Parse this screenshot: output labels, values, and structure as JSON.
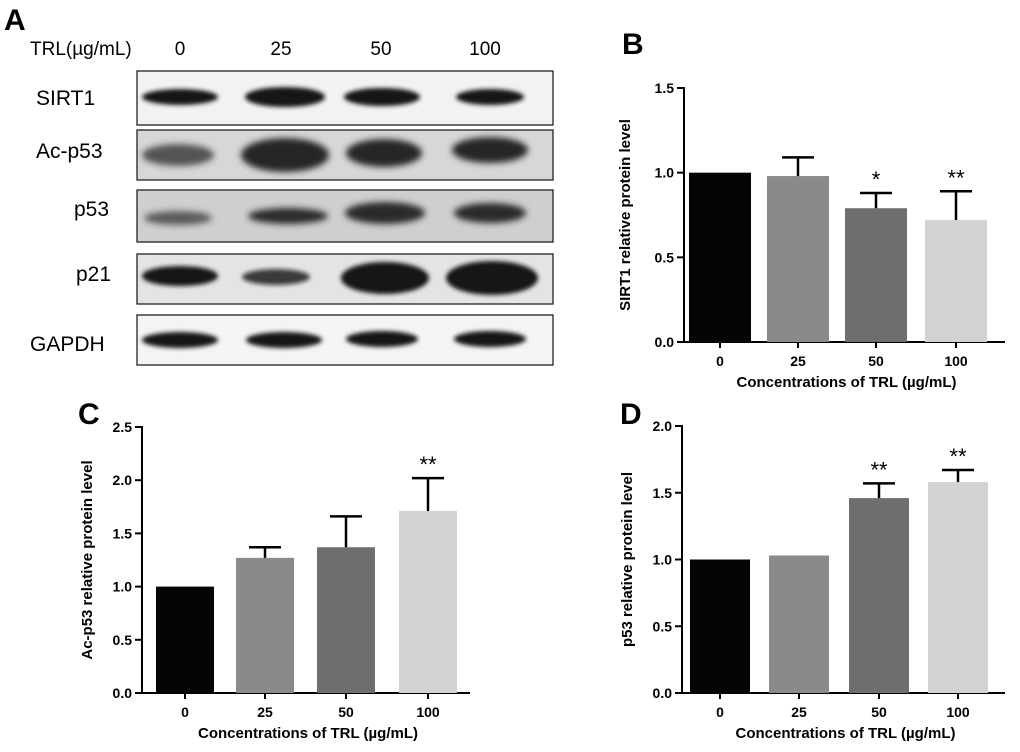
{
  "panel_letters": {
    "a": "A",
    "b": "B",
    "c": "C",
    "d": "D"
  },
  "western_blot": {
    "treatment_label": "TRL(µg/mL)",
    "lanes": [
      "0",
      "25",
      "50",
      "100"
    ],
    "proteins": [
      "SIRT1",
      "Ac-p53",
      "p53",
      "p21",
      "GAPDH"
    ]
  },
  "chart_data": [
    {
      "panel": "B",
      "type": "bar",
      "categories": [
        "0",
        "25",
        "50",
        "100"
      ],
      "values": [
        1.0,
        0.98,
        0.79,
        0.72
      ],
      "errors": [
        0.0,
        0.11,
        0.09,
        0.17
      ],
      "significance": [
        "",
        "",
        "*",
        "**"
      ],
      "colors": [
        "#050505",
        "#8a8a8d",
        "#6e6e6e",
        "#d2d2d2"
      ],
      "xlabel": "Concentrations of TRL (µg/mL)",
      "ylabel": "SIRT1 relative protein level",
      "ylim": [
        0,
        1.5
      ],
      "yticks": [
        "0.0",
        "0.5",
        "1.0",
        "1.5"
      ]
    },
    {
      "panel": "C",
      "type": "bar",
      "categories": [
        "0",
        "25",
        "50",
        "100"
      ],
      "values": [
        1.0,
        1.27,
        1.37,
        1.71
      ],
      "errors": [
        0.0,
        0.1,
        0.29,
        0.31
      ],
      "significance": [
        "",
        "",
        "",
        "**"
      ],
      "colors": [
        "#050505",
        "#8a8a8d",
        "#6e6e6e",
        "#d2d2d2"
      ],
      "xlabel": "Concentrations of TRL (µg/mL)",
      "ylabel": "Ac-p53 relative protein level",
      "ylim": [
        0,
        2.5
      ],
      "yticks": [
        "0.0",
        "0.5",
        "1.0",
        "1.5",
        "2.0",
        "2.5"
      ]
    },
    {
      "panel": "D",
      "type": "bar",
      "categories": [
        "0",
        "25",
        "50",
        "100"
      ],
      "values": [
        1.0,
        1.03,
        1.46,
        1.58
      ],
      "errors": [
        0.0,
        0.01,
        0.11,
        0.09
      ],
      "significance": [
        "",
        "",
        "**",
        "**"
      ],
      "colors": [
        "#050505",
        "#8a8a8d",
        "#6e6e6e",
        "#d2d2d2"
      ],
      "xlabel": "Concentrations of TRL (µg/mL)",
      "ylabel": "p53 relative protein level",
      "ylim": [
        0,
        2.0
      ],
      "yticks": [
        "0.0",
        "0.5",
        "1.0",
        "1.5",
        "2.0"
      ]
    }
  ]
}
